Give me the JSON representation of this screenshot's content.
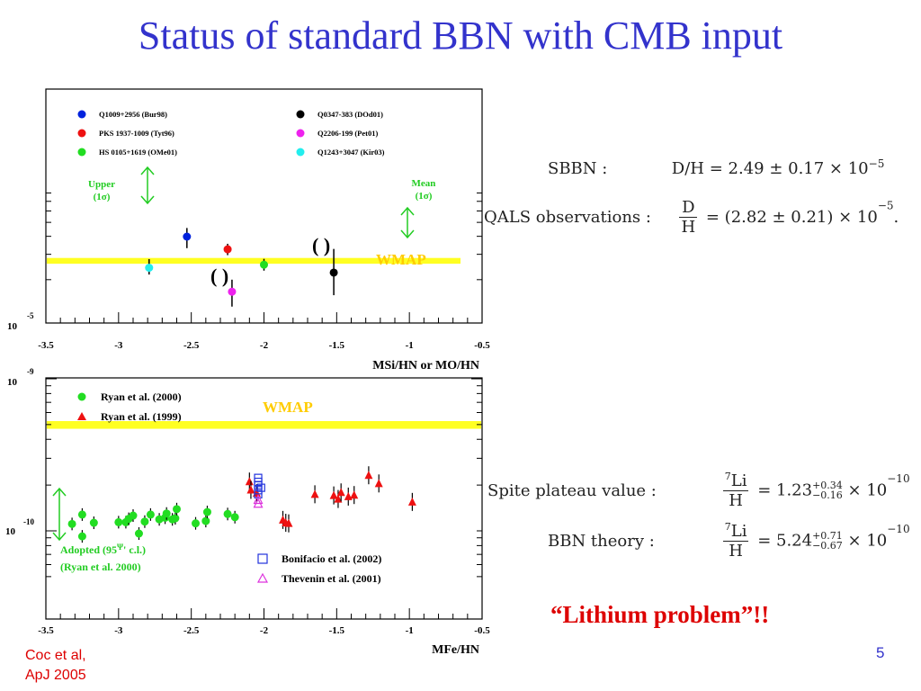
{
  "title": "Status of standard BBN with CMB input",
  "colors": {
    "title": "#3333cc",
    "wmap_band": "#ffff22",
    "wmap_text": "#ffcc00",
    "green_text": "#00cc00",
    "red_text": "#dd0000"
  },
  "equations": {
    "sbbn_label": "SBBN :",
    "sbbn_value": "D/H = 2.49 ± 0.17 × 10",
    "sbbn_exp": "−5",
    "qals_label": "QALS observations :",
    "qals_num": "D",
    "qals_den": "H",
    "qals_value": "= (2.82 ± 0.21) × 10",
    "qals_exp": "−5",
    "qals_tail": ".",
    "spite_label": "Spite plateau value :",
    "spite_num_sup": "7",
    "spite_num": "Li",
    "spite_den": "H",
    "spite_value": "= 1.23",
    "spite_up": "+0.34",
    "spite_down": "−0.16",
    "spite_times": "× 10",
    "spite_exp": "−10",
    "bbn_label": "BBN theory :",
    "bbn_num_sup": "7",
    "bbn_num": "Li",
    "bbn_den": "H",
    "bbn_value": "= 5.24",
    "bbn_up": "+0.71",
    "bbn_down": "−0.67",
    "bbn_times": "× 10",
    "bbn_exp": "−10"
  },
  "lithium_problem": "“Lithium problem”!!",
  "credit_line1": "Coc et al,",
  "credit_line2": "ApJ 2005",
  "page_number": "5",
  "chart_data": [
    {
      "type": "scatter",
      "xlabel": "MSi/HN or MO/HN",
      "xlim": [
        -3.5,
        -0.5
      ],
      "xticks": [
        "-3.5",
        "-3",
        "-2.5",
        "-2",
        "-1.5",
        "-1",
        "-0.5"
      ],
      "ytick_label": "10",
      "ytick_exp": "-5",
      "log_y": true,
      "legend": [
        {
          "name": "Q1009+2956 (Bur98)",
          "color": "#0022dd"
        },
        {
          "name": "PKS 1937-1009 (Tyt96)",
          "color": "#ee1111"
        },
        {
          "name": "HS 0105+1619 (OMe01)",
          "color": "#22dd22"
        },
        {
          "name": "Q0347-383 (DOd01)",
          "color": "#000000"
        },
        {
          "name": "Q2206-199 (Pet01)",
          "color": "#ee22ee"
        },
        {
          "name": "Q1243+3047 (Kir03)",
          "color": "#22eeee"
        }
      ],
      "points": [
        {
          "x": -2.53,
          "y": 3.98,
          "yerr_lo": 0.67,
          "yerr_hi": 0.59,
          "color": "#0022dd"
        },
        {
          "x": -2.25,
          "y": 3.25,
          "yerr_lo": 0.29,
          "yerr_hi": 0.3,
          "color": "#ee1111"
        },
        {
          "x": -2.0,
          "y": 2.54,
          "yerr_lo": 0.23,
          "yerr_hi": 0.25,
          "color": "#22dd22"
        },
        {
          "x": -1.52,
          "y": 2.24,
          "yerr_lo": 0.68,
          "yerr_hi": 1.03,
          "color": "#000000"
        },
        {
          "x": -2.22,
          "y": 1.65,
          "yerr_lo": 0.35,
          "yerr_hi": 0.35,
          "color": "#ee22ee"
        },
        {
          "x": -2.79,
          "y": 2.42,
          "yerr_lo": 0.25,
          "yerr_hi": 0.36,
          "color": "#22eeee"
        }
      ],
      "bracket_labels": [
        "( )",
        "( )"
      ],
      "band": {
        "label": "WMAP",
        "y_min": 2.58,
        "y_max": 2.83
      },
      "annotations": [
        "Upper",
        "(1σ)",
        "Mean",
        "(1σ)"
      ]
    },
    {
      "type": "scatter",
      "xlabel": "MFe/HN",
      "xlim": [
        -3.5,
        -0.5
      ],
      "xticks": [
        "-3.5",
        "-3",
        "-2.5",
        "-2",
        "-1.5",
        "-1",
        "-0.5"
      ],
      "ytick_labels": [
        {
          "base": "10",
          "exp": "-9"
        },
        {
          "base": "10",
          "exp": "-10"
        }
      ],
      "log_y": true,
      "legend": [
        {
          "name": "Ryan et al. (2000)",
          "color": "#22dd22",
          "marker": "circle"
        },
        {
          "name": "Ryan et al. (1999)",
          "color": "#ee1111",
          "marker": "triangle"
        },
        {
          "name": "Bonifacio et al. (2002)",
          "color": "#2233dd",
          "marker": "square"
        },
        {
          "name": "Thevenin et al. (2001)",
          "color": "#dd33dd",
          "marker": "open-triangle"
        }
      ],
      "band": {
        "label": "WMAP",
        "y_min": 4.69,
        "y_max": 5.27
      },
      "annotations": [
        "Adopted (95",
        "Ψ",
        "' c.l.)",
        "(Ryan et al. 2000)"
      ],
      "series": [
        {
          "name": "Ryan et al. (2000)",
          "marker": "circle",
          "color": "#22dd22",
          "points": [
            [
              -3.32,
              1.11
            ],
            [
              -3.25,
              1.28
            ],
            [
              -3.25,
              0.92
            ],
            [
              -3.17,
              1.13
            ],
            [
              -3.0,
              1.14
            ],
            [
              -2.95,
              1.14
            ],
            [
              -2.93,
              1.2
            ],
            [
              -2.9,
              1.26
            ],
            [
              -2.86,
              0.96
            ],
            [
              -2.82,
              1.15
            ],
            [
              -2.78,
              1.28
            ],
            [
              -2.72,
              1.19
            ],
            [
              -2.68,
              1.22
            ],
            [
              -2.67,
              1.3
            ],
            [
              -2.63,
              1.19
            ],
            [
              -2.61,
              1.21
            ],
            [
              -2.6,
              1.39
            ],
            [
              -2.47,
              1.12
            ],
            [
              -2.4,
              1.16
            ],
            [
              -2.39,
              1.33
            ],
            [
              -2.25,
              1.29
            ],
            [
              -2.2,
              1.23
            ]
          ]
        },
        {
          "name": "Ryan et al. (1999)",
          "marker": "triangle",
          "color": "#ee1111",
          "points": [
            [
              -2.1,
              2.11
            ],
            [
              -2.09,
              1.86
            ],
            [
              -2.05,
              1.77
            ],
            [
              -1.87,
              1.18
            ],
            [
              -1.85,
              1.13
            ],
            [
              -1.83,
              1.12
            ],
            [
              -1.65,
              1.74
            ],
            [
              -1.52,
              1.71
            ],
            [
              -1.49,
              1.62
            ],
            [
              -1.47,
              1.79
            ],
            [
              -1.42,
              1.68
            ],
            [
              -1.38,
              1.72
            ],
            [
              -1.28,
              2.32
            ],
            [
              -1.21,
              2.05
            ],
            [
              -0.98,
              1.55
            ]
          ]
        },
        {
          "name": "Bonifacio et al. (2002)",
          "marker": "square",
          "color": "#2233dd",
          "points": [
            [
              -2.04,
              2.23
            ],
            [
              -2.04,
              2.1
            ],
            [
              -2.04,
              1.99
            ],
            [
              -2.04,
              1.85
            ],
            [
              -2.04,
              1.74
            ],
            [
              -2.02,
              1.92
            ]
          ]
        },
        {
          "name": "Thevenin et al. (2001)",
          "marker": "open-triangle",
          "color": "#dd33dd",
          "points": [
            [
              -2.04,
              1.51
            ],
            [
              -2.04,
              1.6
            ]
          ]
        }
      ]
    }
  ]
}
